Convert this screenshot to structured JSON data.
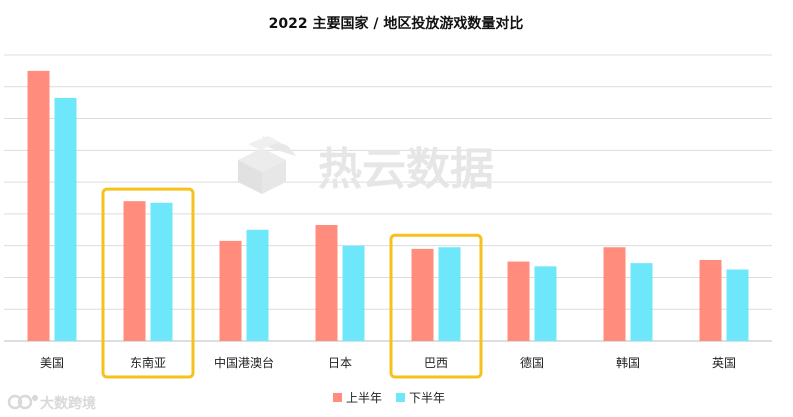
{
  "chart_data": {
    "type": "bar",
    "title": "2022 主要国家 / 地区投放游戏数量对比",
    "categories": [
      "美国",
      "东南亚",
      "中国港澳台",
      "日本",
      "巴西",
      "德国",
      "韩国",
      "英国"
    ],
    "series": [
      {
        "name": "上半年",
        "color": "#ff8c7c",
        "values": [
          8.5,
          4.4,
          3.15,
          3.65,
          2.9,
          2.5,
          2.95,
          2.55
        ]
      },
      {
        "name": "下半年",
        "color": "#6de7f9",
        "values": [
          7.65,
          4.35,
          3.5,
          3.0,
          2.95,
          2.35,
          2.45,
          2.25
        ]
      }
    ],
    "ylim": [
      0,
      9
    ],
    "grid": true,
    "legend_position": "bottom-center",
    "highlighted_categories": [
      "东南亚",
      "巴西"
    ],
    "highlight_color": "#f5c21b"
  },
  "watermark": {
    "text": "热云数据",
    "icon": "cube-stack-logo-icon"
  },
  "corner_logo": {
    "text": "大数跨境",
    "icon": "da-shu-logo-icon"
  }
}
